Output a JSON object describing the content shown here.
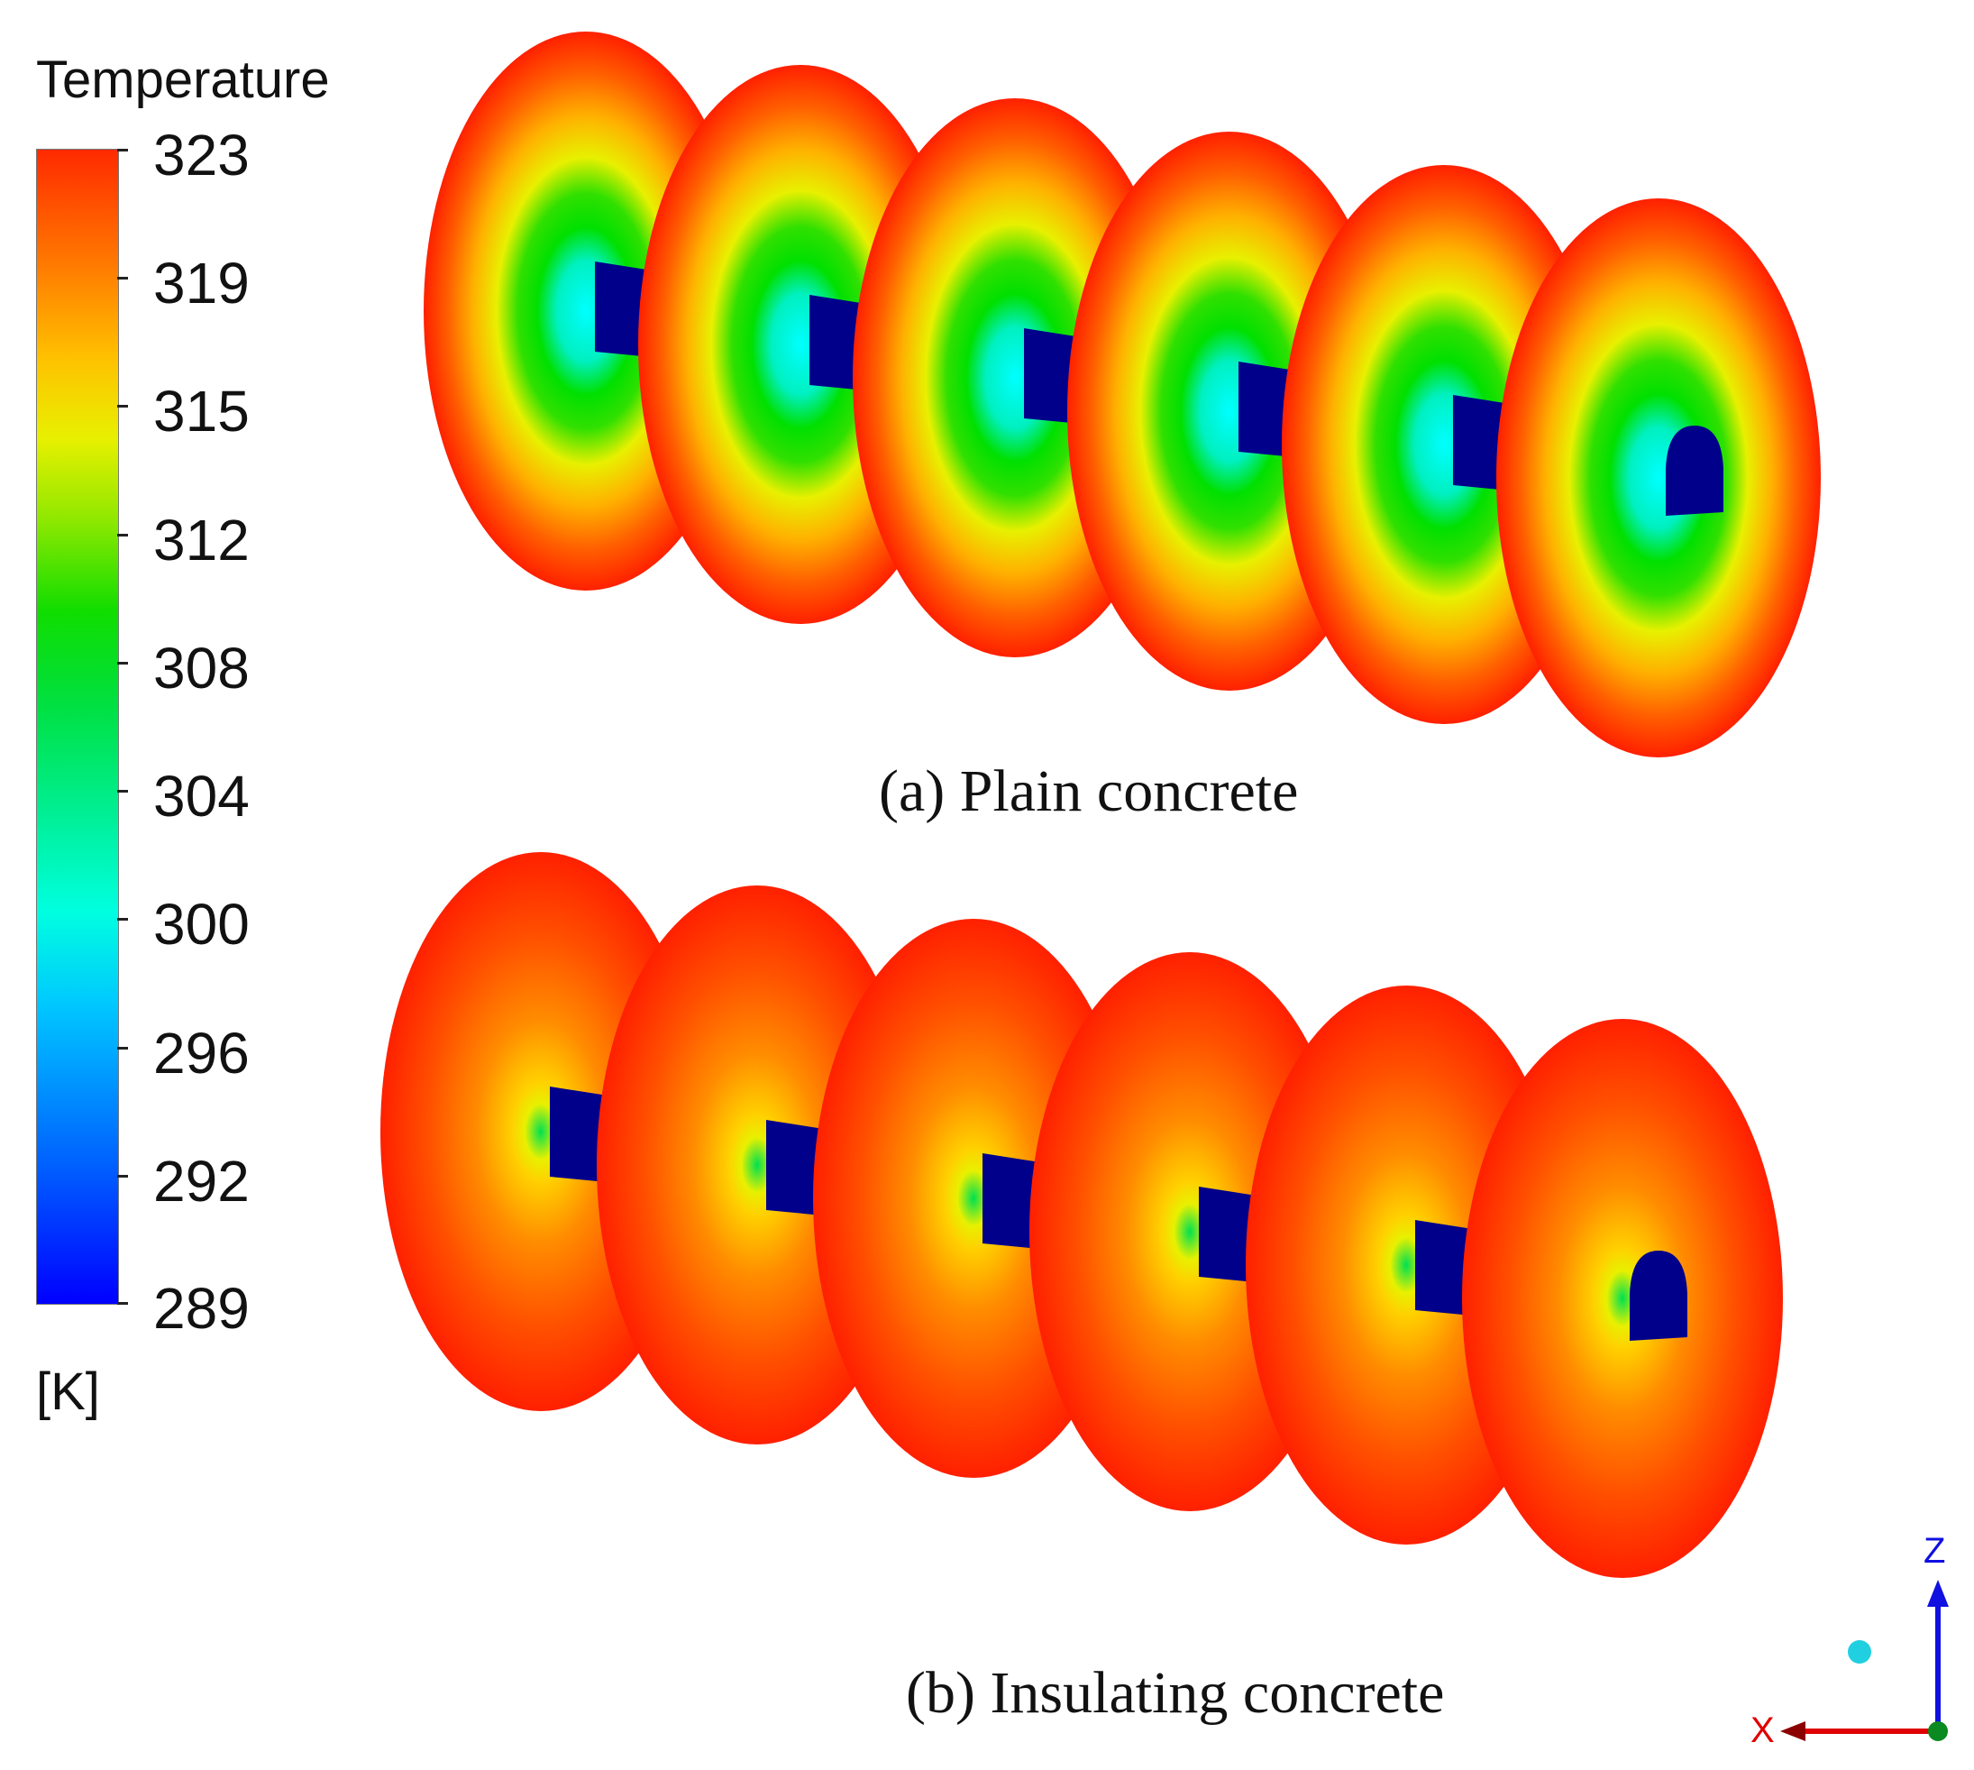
{
  "legend": {
    "title": "Temperature",
    "unit": "[K]",
    "tick_labels": [
      "323",
      "319",
      "315",
      "312",
      "308",
      "304",
      "300",
      "296",
      "292",
      "289"
    ]
  },
  "panels": {
    "a": {
      "caption": "(a) Plain concrete",
      "rings": 6
    },
    "b": {
      "caption": "(b) Insulating concrete",
      "rings": 6
    }
  },
  "triad": {
    "z_label": "Z",
    "x_label": "X"
  },
  "colors": {
    "hot": "#ff2000",
    "warm": "#ff8a00",
    "mid": "#f0f000",
    "green": "#00e000",
    "cold": "#00ffff",
    "tunnel": "#00008b",
    "axis_z": "#1010e0",
    "axis_x": "#e00000"
  }
}
